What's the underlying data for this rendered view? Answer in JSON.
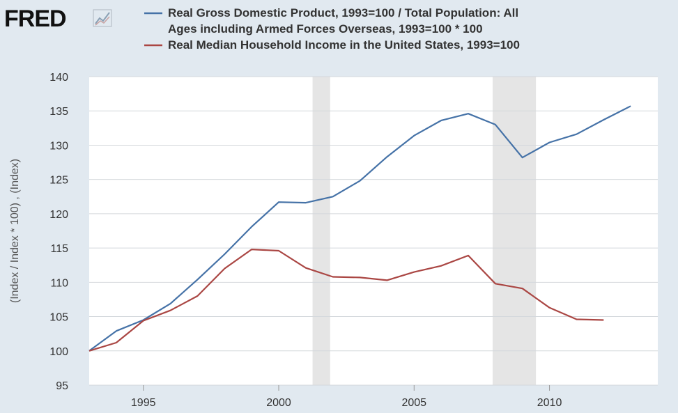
{
  "brand": {
    "name": "FRED",
    "logo_icon": "fred-graph-icon"
  },
  "colors": {
    "background": "#e1e9f0",
    "plot_background": "#ffffff",
    "grid": "#d4d8dc",
    "recession": "#e5e5e5",
    "series_gdp": "#4572a7",
    "series_income": "#aa4643",
    "text": "#333333"
  },
  "chart_data": {
    "type": "line",
    "title": "",
    "xlabel": "",
    "ylabel": "(Index / Index * 100) , (Index)",
    "xlim": [
      1993,
      2014.0
    ],
    "ylim": [
      95,
      140
    ],
    "x_ticks": [
      1995,
      2000,
      2005,
      2010
    ],
    "y_ticks": [
      95,
      100,
      105,
      110,
      115,
      120,
      125,
      130,
      135,
      140
    ],
    "grid": true,
    "legend_position": "top",
    "recessions": [
      [
        2001.25,
        2001.9
      ],
      [
        2007.9,
        2009.5
      ]
    ],
    "series": [
      {
        "name": "Real Gross Domestic Product, 1993=100 / Total Population: All Ages including Armed Forces Overseas, 1993=100 * 100",
        "legend_lines": [
          "Real Gross Domestic Product, 1993=100 / Total Population: All",
          "Ages including Armed Forces Overseas, 1993=100 * 100"
        ],
        "color": "#4572a7",
        "x": [
          1993,
          1994,
          1995,
          1996,
          1997,
          1998,
          1999,
          2000,
          2001,
          2002,
          2003,
          2004,
          2005,
          2006,
          2007,
          2008,
          2009,
          2010,
          2011,
          2012,
          2013
        ],
        "y": [
          100.0,
          102.9,
          104.5,
          106.9,
          110.4,
          114.1,
          118.1,
          121.7,
          121.6,
          122.5,
          124.8,
          128.3,
          131.4,
          133.6,
          134.6,
          133.0,
          128.2,
          130.4,
          131.6,
          133.7,
          135.7
        ]
      },
      {
        "name": "Real Median Household Income in the United States, 1993=100",
        "legend_lines": [
          "Real Median Household Income in the United States, 1993=100"
        ],
        "color": "#aa4643",
        "x": [
          1993,
          1994,
          1995,
          1996,
          1997,
          1998,
          1999,
          2000,
          2001,
          2002,
          2003,
          2004,
          2005,
          2006,
          2007,
          2008,
          2009,
          2010,
          2011,
          2012
        ],
        "y": [
          100.0,
          101.2,
          104.4,
          105.9,
          108.0,
          112.0,
          114.8,
          114.6,
          112.1,
          110.8,
          110.7,
          110.3,
          111.5,
          112.4,
          113.9,
          109.8,
          109.1,
          106.3,
          104.6,
          104.5
        ]
      }
    ]
  }
}
